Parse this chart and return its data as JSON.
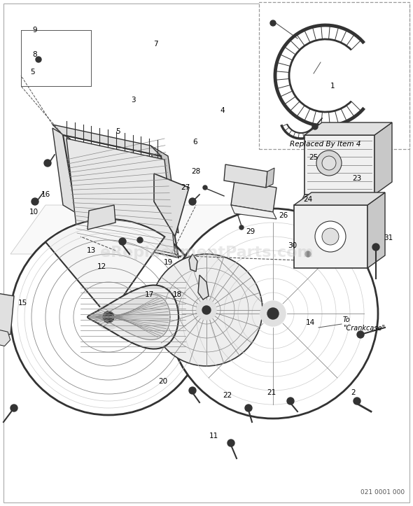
{
  "background_color": "#ffffff",
  "watermark": "eReplacementParts.com",
  "part_number": "021 0001 000",
  "fig_width": 5.9,
  "fig_height": 7.23,
  "dpi": 100,
  "line_color": "#555555",
  "dark_gray": "#333333",
  "mid_gray": "#888888",
  "light_gray": "#cccccc",
  "fill_light": "#f0f0f0",
  "fill_mid": "#e0e0e0",
  "fill_dark": "#c8c8c8",
  "replaced_by_text": "Replaced By Item 4",
  "to_crankcase_text": "To\n\"Crankcase\"",
  "watermark_color": "#cccccc",
  "part_number_color": "#555555"
}
